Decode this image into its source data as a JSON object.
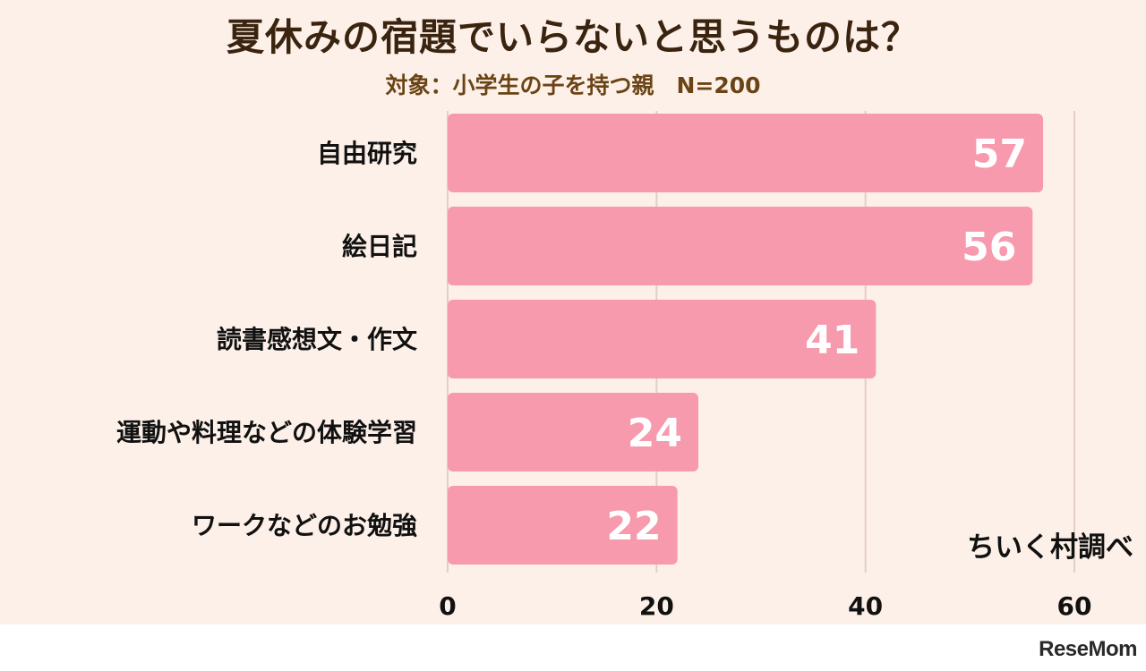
{
  "header": {
    "title": "夏休みの宿題でいらないと思うものは？",
    "subtitle": "対象：小学生の子を持つ親　N=200"
  },
  "credit": "ちいく村調べ",
  "footer": {
    "logo": "ReseMom"
  },
  "colors": {
    "background": "#fdf0e8",
    "bar": "#f79aad",
    "bar_label": "#ffffff",
    "grid": "#e3cfc3"
  },
  "chart_data": {
    "type": "bar",
    "orientation": "horizontal",
    "title": "夏休みの宿題でいらないと思うものは？",
    "subtitle": "対象：小学生の子を持つ親　N=200",
    "categories": [
      "自由研究",
      "絵日記",
      "読書感想文・作文",
      "運動や料理などの体験学習",
      "ワークなどのお勉強"
    ],
    "values": [
      57,
      56,
      41,
      24,
      22
    ],
    "xlim": [
      0,
      60
    ],
    "xticks": [
      0,
      20,
      40,
      60
    ],
    "grid": true,
    "xlabel": "",
    "ylabel": ""
  }
}
